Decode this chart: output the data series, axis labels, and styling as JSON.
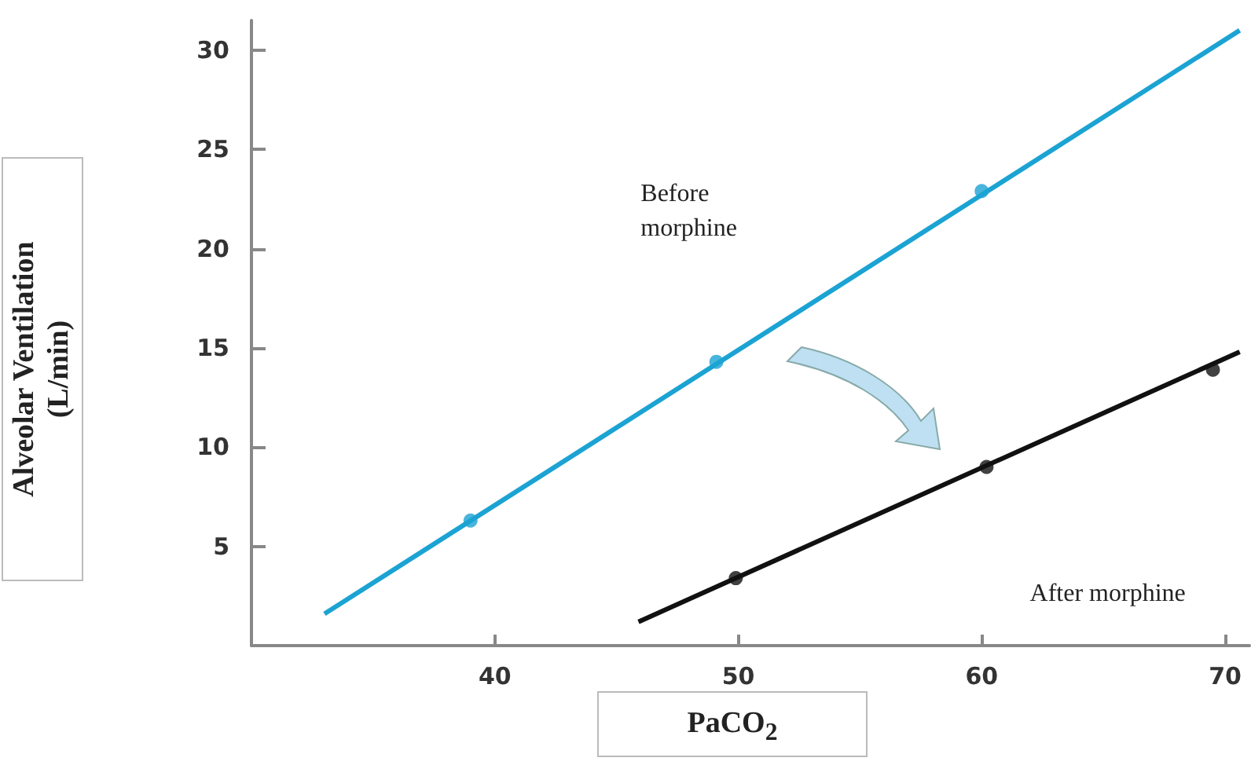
{
  "chart_data": {
    "type": "line",
    "xlabel": "PaCO$_{2}$",
    "ylabel": "Alveolar Ventilation (L/min)",
    "xlim": [
      30,
      71
    ],
    "xticks": [
      40,
      50,
      60,
      70
    ],
    "ylim": [
      0,
      31.5
    ],
    "yticks": [
      5,
      10,
      15,
      20,
      25,
      30
    ],
    "grid": false,
    "marker": "none",
    "line_style": "solid",
    "annotations": [
      "Before morphine",
      "After morphine"
    ],
    "series": [
      {
        "color": "#1ba3d3",
        "x": [
          33,
          70.6
        ],
        "values": [
          1.6,
          31
        ]
      },
      {
        "color": "#111111",
        "x": [
          45.9,
          70.6
        ],
        "values": [
          1.2,
          14.8
        ]
      },
      {
        "type": "scatter",
        "marker": "circle",
        "color": "#1ba3d3",
        "x": [
          39,
          49.1,
          60
        ],
        "values": [
          6.3,
          14.3,
          22.9
        ]
      },
      {
        "type": "scatter",
        "marker": "circle",
        "color": "#111111",
        "x": [
          49.9,
          60.2,
          69.5
        ],
        "values": [
          3.4,
          9,
          13.9
        ]
      }
    ]
  }
}
